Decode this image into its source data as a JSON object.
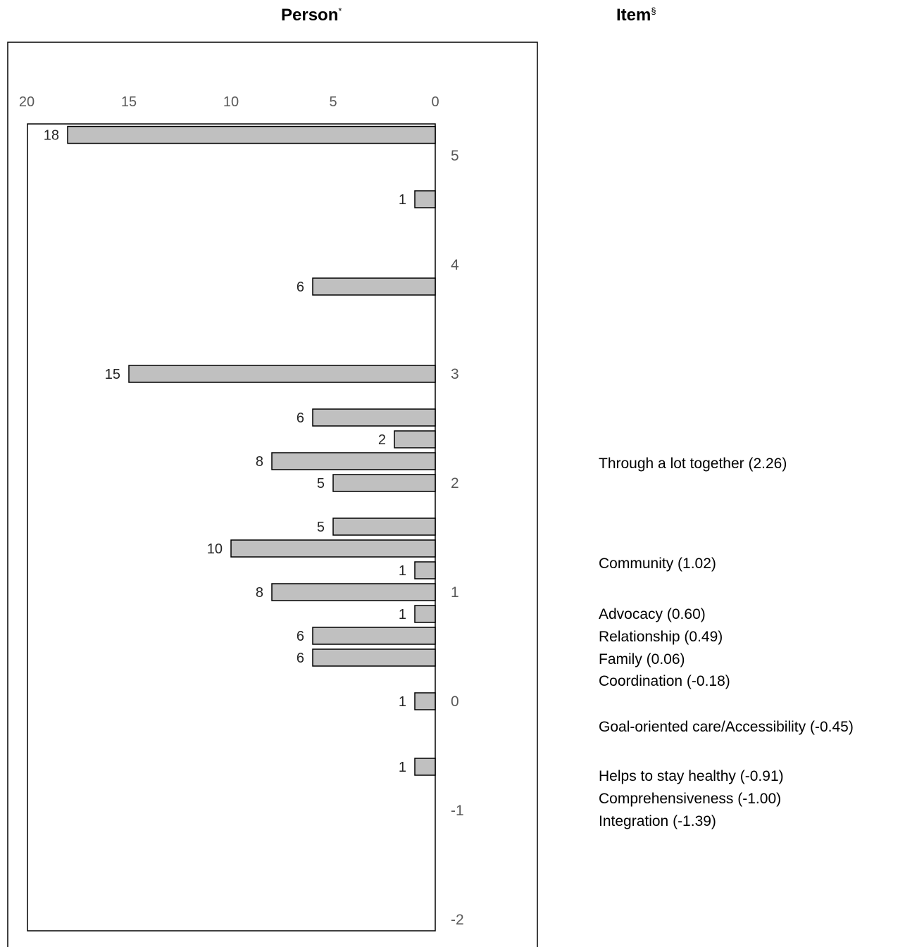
{
  "headers": {
    "person_label": "Person",
    "person_mark": "*",
    "item_label": "Item",
    "item_mark": "§"
  },
  "colors": {
    "bar_fill": "#c0c0c0",
    "bar_stroke": "#000000",
    "tick_text": "#595959",
    "label_text": "#262626"
  },
  "chart_data": {
    "type": "bar",
    "orientation": "horizontal",
    "grid": false,
    "legend": "none",
    "title": "",
    "count_axis": {
      "ticks": [
        20,
        15,
        10,
        5,
        0
      ],
      "range": [
        20,
        0
      ],
      "reversed": true,
      "position": "top"
    },
    "measure_axis": {
      "ticks": [
        5,
        4,
        3,
        2,
        1,
        0,
        -1,
        -2
      ],
      "range": [
        -2.3,
        5.2
      ],
      "position": "right-of-zero"
    },
    "bars": [
      {
        "measure": 5.19,
        "count": 18
      },
      {
        "measure": 4.6,
        "count": 1
      },
      {
        "measure": 3.8,
        "count": 6
      },
      {
        "measure": 3.0,
        "count": 15
      },
      {
        "measure": 2.6,
        "count": 6
      },
      {
        "measure": 2.4,
        "count": 2
      },
      {
        "measure": 2.2,
        "count": 8
      },
      {
        "measure": 2.0,
        "count": 5
      },
      {
        "measure": 1.6,
        "count": 5
      },
      {
        "measure": 1.4,
        "count": 10
      },
      {
        "measure": 1.2,
        "count": 1
      },
      {
        "measure": 1.0,
        "count": 8
      },
      {
        "measure": 0.8,
        "count": 1
      },
      {
        "measure": 0.6,
        "count": 6
      },
      {
        "measure": 0.4,
        "count": 6
      },
      {
        "measure": 0.0,
        "count": 1
      },
      {
        "measure": -0.6,
        "count": 1
      }
    ],
    "items": [
      {
        "label": "Through a lot together (2.26)",
        "measure": 2.26
      },
      {
        "label": "Community (1.02)",
        "measure": 1.02
      },
      {
        "label": "Advocacy (0.60)",
        "measure": 0.6
      },
      {
        "label": "Relationship (0.49)",
        "measure": 0.49
      },
      {
        "label": "Family (0.06)",
        "measure": 0.06
      },
      {
        "label": "Coordination (-0.18)",
        "measure": -0.18
      },
      {
        "label": "Goal-oriented care/Accessibility (-0.45)",
        "measure": -0.45
      },
      {
        "label": "Helps to stay healthy (-0.91)",
        "measure": -0.91
      },
      {
        "label": "Comprehensiveness (-1.00)",
        "measure": -1.0
      },
      {
        "label": "Integration (-1.39)",
        "measure": -1.39
      }
    ]
  }
}
